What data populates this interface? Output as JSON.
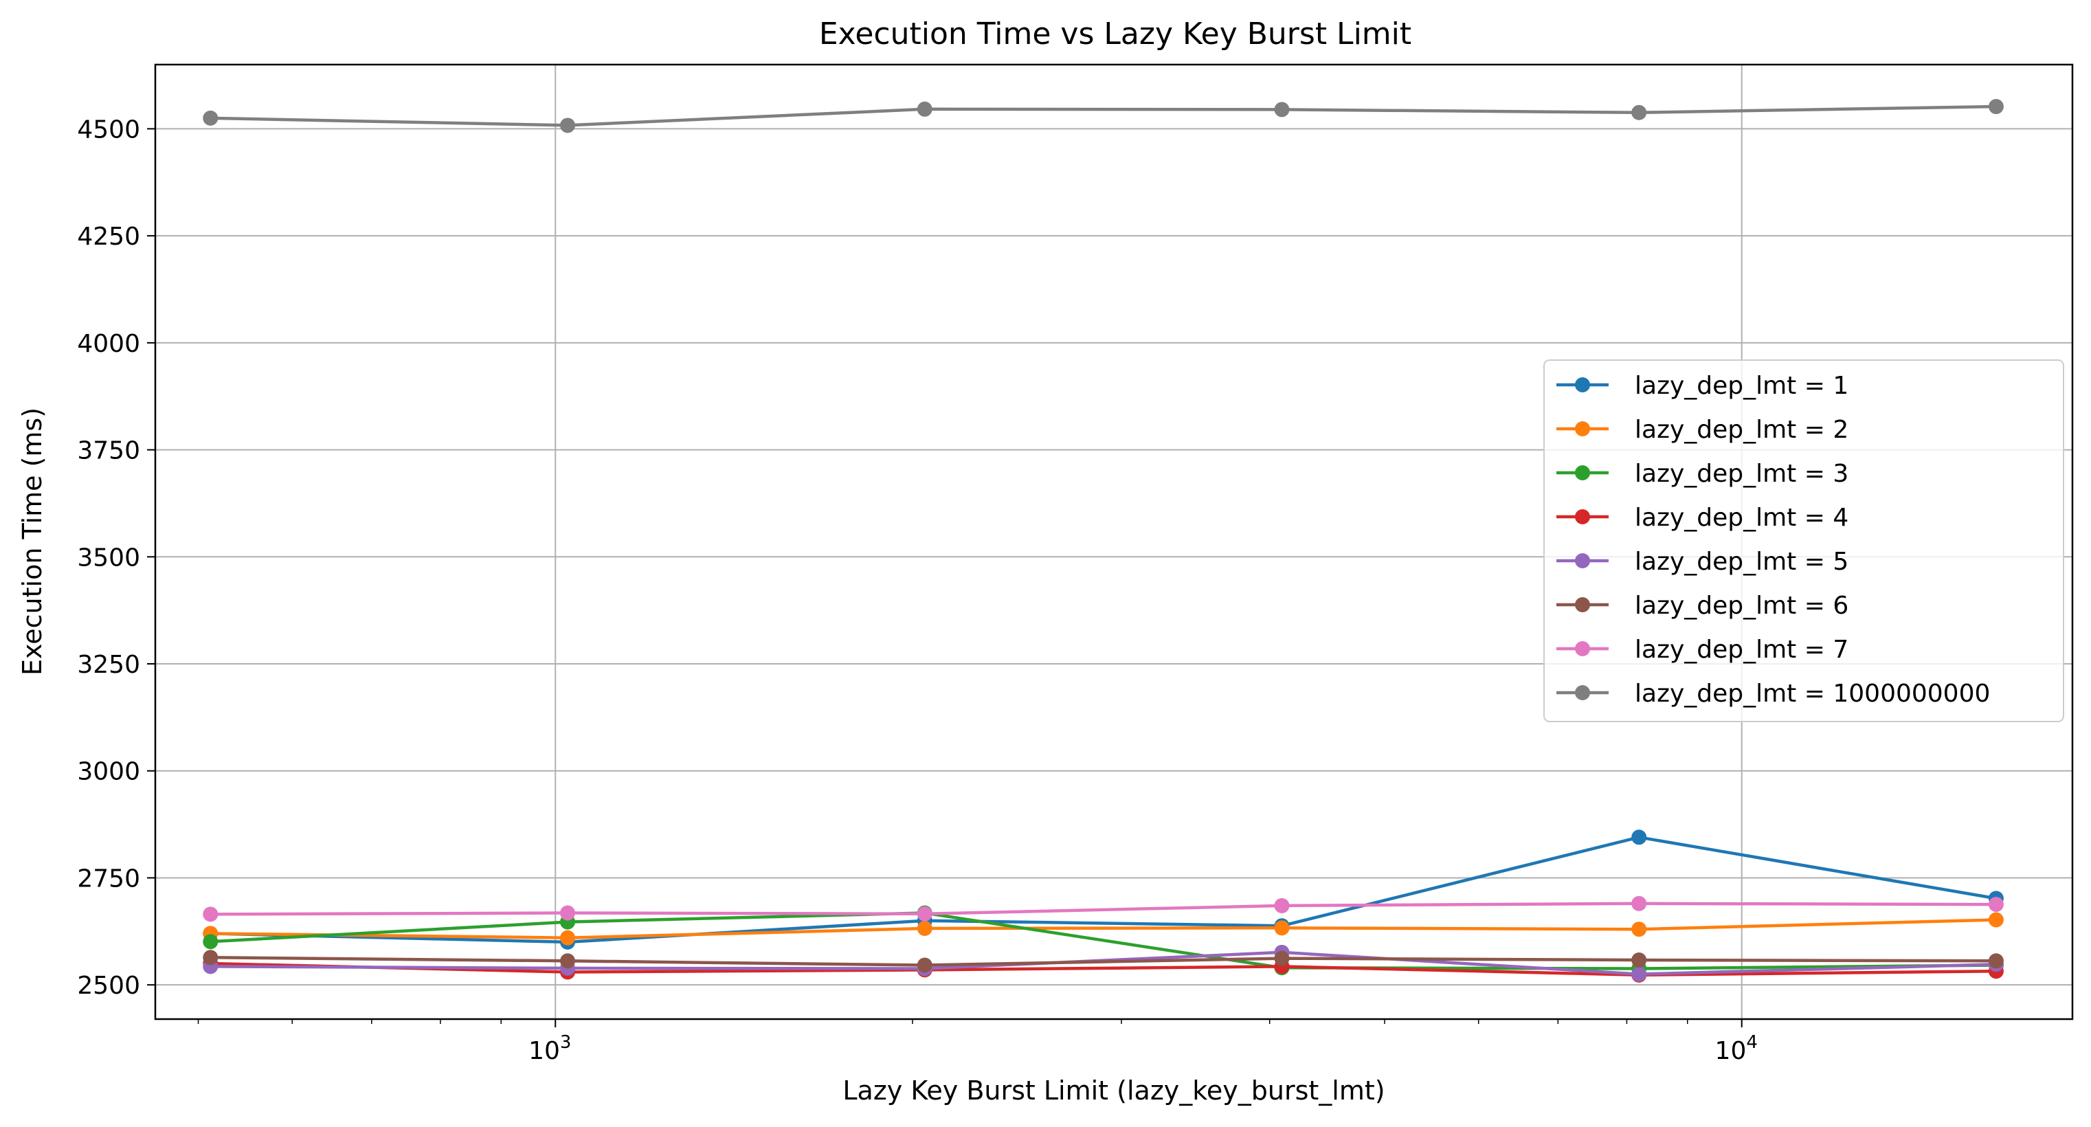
{
  "chart_data": {
    "type": "line",
    "title": "Execution Time vs Lazy Key Burst Limit",
    "xlabel": "Lazy Key Burst Limit (lazy_key_burst_lmt)",
    "ylabel": "Execution Time (ms)",
    "xscale": "log",
    "xlim": [
      460,
      19000
    ],
    "ylim": [
      2420,
      4650
    ],
    "grid": true,
    "legend_position": "right",
    "x": [
      512,
      1024,
      2048,
      4096,
      8192,
      16384
    ],
    "x_ticks": [
      {
        "value": 1000,
        "label": "10",
        "exp": "3"
      },
      {
        "value": 10000,
        "label": "10",
        "exp": "4"
      }
    ],
    "y_ticks": [
      2500,
      2750,
      3000,
      3250,
      3500,
      3750,
      4000,
      4250,
      4500
    ],
    "series": [
      {
        "name": "lazy_dep_lmt = 1",
        "color": "#1f77b4",
        "values": [
          2620,
          2600,
          2650,
          2638,
          2845,
          2702
        ]
      },
      {
        "name": "lazy_dep_lmt = 2",
        "color": "#ff7f0e",
        "values": [
          2620,
          2610,
          2632,
          2633,
          2630,
          2652
        ]
      },
      {
        "name": "lazy_dep_lmt = 3",
        "color": "#2ca02c",
        "values": [
          2601,
          2647,
          2668,
          2540,
          2538,
          2546
        ]
      },
      {
        "name": "lazy_dep_lmt = 4",
        "color": "#d62728",
        "values": [
          2550,
          2530,
          2535,
          2543,
          2523,
          2532
        ]
      },
      {
        "name": "lazy_dep_lmt = 5",
        "color": "#9467bd",
        "values": [
          2543,
          2539,
          2538,
          2576,
          2525,
          2548
        ]
      },
      {
        "name": "lazy_dep_lmt = 6",
        "color": "#8c564b",
        "values": [
          2564,
          2556,
          2546,
          2562,
          2558,
          2556
        ]
      },
      {
        "name": "lazy_dep_lmt = 7",
        "color": "#e377c2",
        "values": [
          2665,
          2668,
          2666,
          2685,
          2690,
          2688
        ]
      },
      {
        "name": "lazy_dep_lmt = 1000000000",
        "color": "#7f7f7f",
        "values": [
          4525,
          4508,
          4546,
          4545,
          4538,
          4552
        ]
      }
    ]
  }
}
